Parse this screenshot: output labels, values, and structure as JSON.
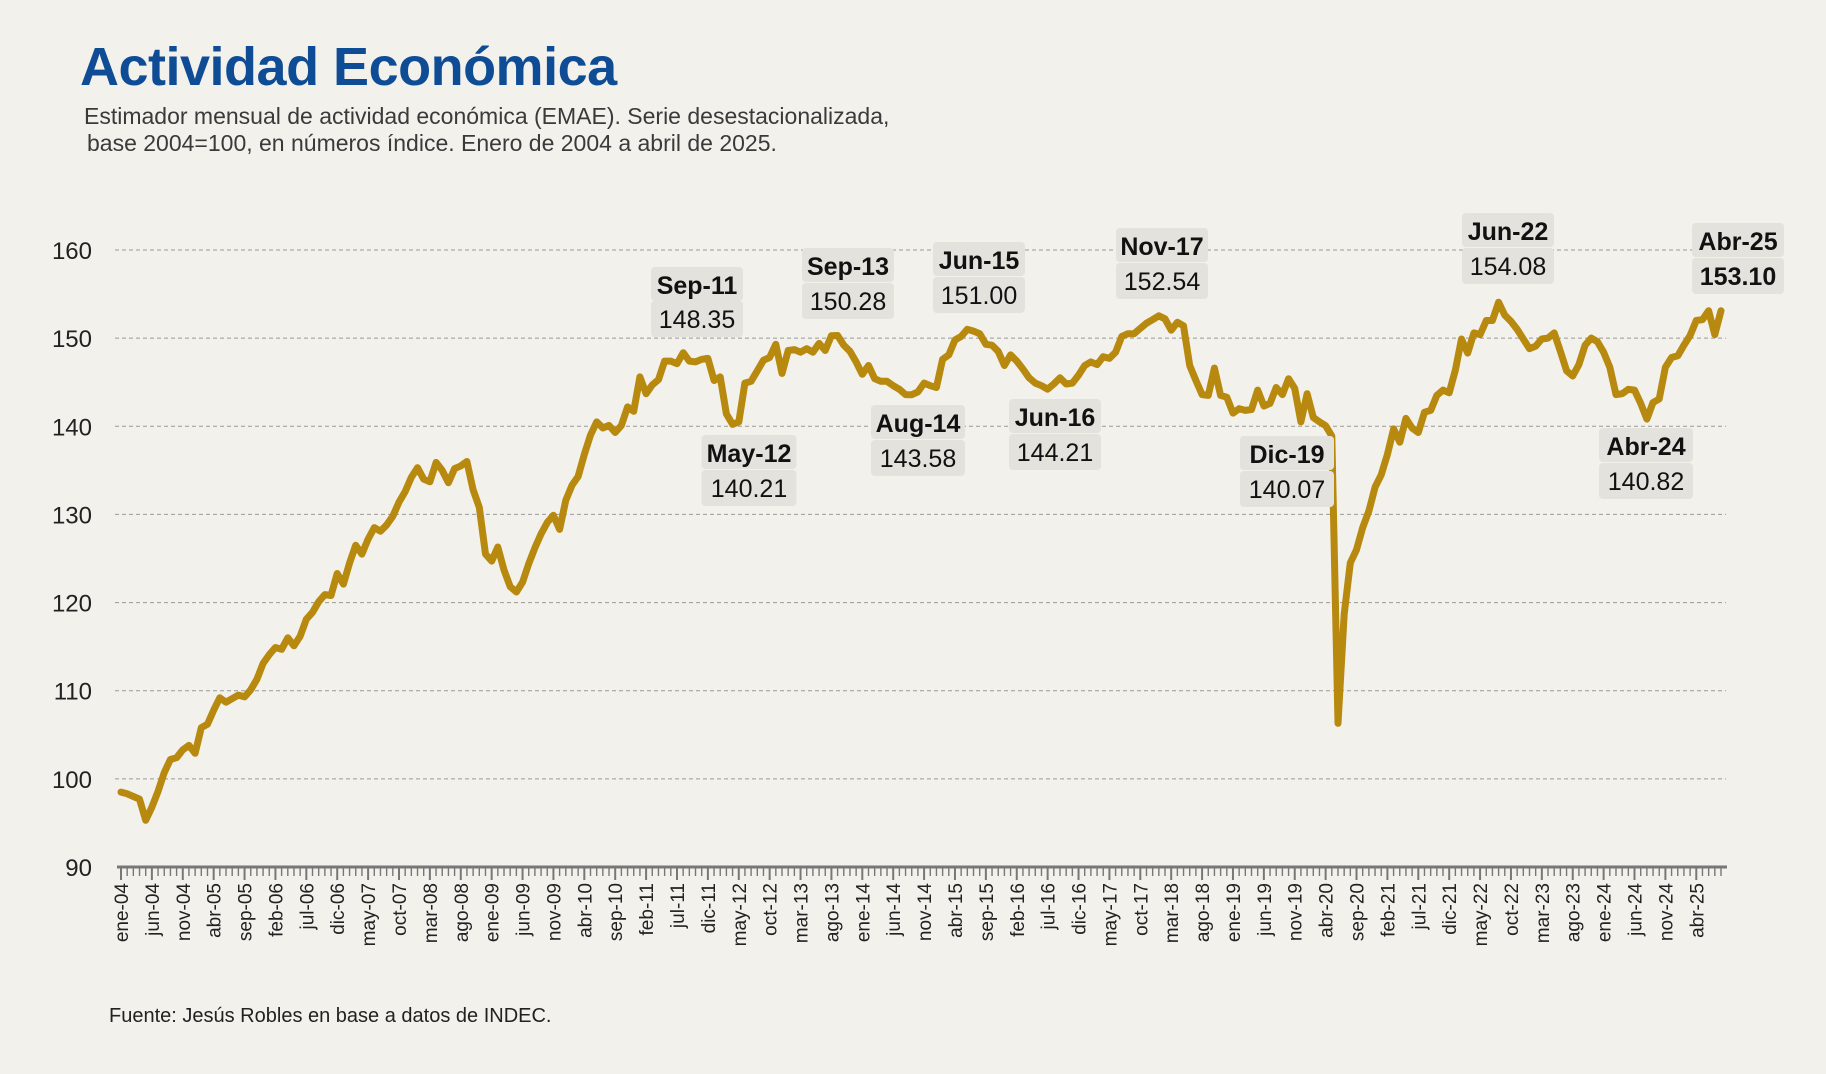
{
  "header": {
    "title": "Actividad Económica",
    "subtitle_line1": "Estimador mensual de actividad económica (EMAE). Serie desestacionalizada,",
    "subtitle_line2": "base 2004=100, en números índice. Enero de 2004 a abril de 2025."
  },
  "footer": {
    "source": "Fuente: Jesús Robles en base a datos de INDEC."
  },
  "colors": {
    "line": "#b8890f",
    "title": "#0f4c96",
    "background": "#f3f1ec",
    "grid": "#999999",
    "label_box": "#e4e2dd"
  },
  "chart_data": {
    "type": "line",
    "title": "Actividad Económica",
    "xlabel": "",
    "ylabel": "",
    "ylim": [
      90,
      160
    ],
    "yticks": [
      90,
      100,
      110,
      120,
      130,
      140,
      150,
      160
    ],
    "grid": "horizontal dashed",
    "start": "ene-04",
    "end": "abr-25",
    "x_tick_labels": [
      "ene-04",
      "jun-04",
      "nov-04",
      "abr-05",
      "sep-05",
      "feb-06",
      "jul-06",
      "dic-06",
      "may-07",
      "oct-07",
      "mar-08",
      "ago-08",
      "ene-09",
      "jun-09",
      "nov-09",
      "abr-10",
      "sep-10",
      "feb-11",
      "jul-11",
      "dic-11",
      "may-12",
      "oct-12",
      "mar-13",
      "ago-13",
      "ene-14",
      "jun-14",
      "nov-14",
      "abr-15",
      "sep-15",
      "feb-16",
      "jul-16",
      "dic-16",
      "may-17",
      "oct-17",
      "mar-18",
      "ago-18",
      "ene-19",
      "jun-19",
      "nov-19",
      "abr-20",
      "sep-20",
      "feb-21",
      "jul-21",
      "dic-21",
      "may-22",
      "oct-22",
      "mar-23",
      "ago-23",
      "ene-24",
      "jun-24",
      "nov-24",
      "abr-25"
    ],
    "series": [
      {
        "values": [
          98.5,
          98.3,
          98,
          97.7,
          95.3,
          96.8,
          98.6,
          100.7,
          102.2,
          102.4,
          103.3,
          103.8,
          102.9,
          105.8,
          106.2,
          107.8,
          109.2,
          108.7,
          109.1,
          109.5,
          109.3,
          110.1,
          111.3,
          113.1,
          114.1,
          114.9,
          114.7,
          116,
          115.1,
          116.2,
          118.1,
          118.9,
          120.1,
          120.9,
          120.8,
          123.3,
          122.1,
          124.5,
          126.5,
          125.5,
          127.2,
          128.5,
          128.1,
          128.8,
          129.8,
          131.4,
          132.6,
          134.2,
          135.3,
          134,
          133.7,
          135.9,
          135,
          133.6,
          135.2,
          135.5,
          136,
          132.8,
          130.8,
          125.5,
          124.7,
          126.3,
          123.7,
          121.8,
          121.2,
          122.3,
          124.4,
          126.2,
          127.8,
          129.1,
          129.9,
          128.3,
          131.6,
          133.3,
          134.3,
          136.8,
          139,
          140.5,
          139.8,
          140.1,
          139.3,
          140.1,
          142.2,
          141.7,
          145.6,
          143.7,
          144.7,
          145.3,
          147.4,
          147.4,
          147.1,
          148.35,
          147.4,
          147.3,
          147.6,
          147.7,
          145.2,
          145.6,
          141.4,
          140.21,
          140.5,
          144.9,
          145.1,
          146.3,
          147.5,
          147.8,
          149.3,
          146,
          148.6,
          148.7,
          148.4,
          148.8,
          148.4,
          149.4,
          148.6,
          150.28,
          150.3,
          149.2,
          148.5,
          147.3,
          145.9,
          146.9,
          145.4,
          145.1,
          145.1,
          144.6,
          144.2,
          143.6,
          143.58,
          143.9,
          144.9,
          144.6,
          144.4,
          147.6,
          148.1,
          149.8,
          150.2,
          151,
          150.8,
          150.5,
          149.3,
          149.2,
          148.5,
          146.9,
          148.1,
          147.4,
          146.5,
          145.5,
          144.9,
          144.6,
          144.21,
          144.8,
          145.5,
          144.8,
          144.9,
          145.8,
          146.9,
          147.3,
          147,
          147.9,
          147.7,
          148.4,
          150.2,
          150.5,
          150.5,
          151.1,
          151.7,
          152.1,
          152.54,
          152.2,
          150.9,
          151.8,
          151.4,
          146.9,
          145.2,
          143.6,
          143.5,
          146.6,
          143.5,
          143.3,
          141.5,
          142,
          141.8,
          141.9,
          144.1,
          142.3,
          142.6,
          144.4,
          143.6,
          145.4,
          144.3,
          140.5,
          143.7,
          141,
          140.5,
          140.07,
          138.9,
          106.3,
          118.7,
          124.5,
          126,
          128.5,
          130.4,
          133.1,
          134.5,
          136.8,
          139.7,
          138.2,
          140.9,
          139.8,
          139.3,
          141.6,
          141.8,
          143.5,
          144.1,
          143.8,
          146.4,
          149.9,
          148.3,
          150.6,
          150.4,
          152,
          152,
          154.08,
          152.6,
          151.9,
          151,
          149.9,
          148.8,
          149.1,
          149.9,
          150,
          150.6,
          148.5,
          146.3,
          145.7,
          147,
          149.2,
          150,
          149.6,
          148.4,
          146.7,
          143.6,
          143.7,
          144.2,
          144.1,
          142.6,
          140.82,
          142.7,
          143.1,
          146.7,
          147.8,
          148,
          149.2,
          150.3,
          152,
          152.1,
          153.1,
          150.4,
          153.1
        ]
      }
    ],
    "annotations": [
      {
        "month": "Sep-11",
        "value": "148.35"
      },
      {
        "month": "May-12",
        "value": "140.21"
      },
      {
        "month": "Sep-13",
        "value": "150.28"
      },
      {
        "month": "Aug-14",
        "value": "143.58"
      },
      {
        "month": "Jun-15",
        "value": "151.00"
      },
      {
        "month": "Jun-16",
        "value": "144.21"
      },
      {
        "month": "Nov-17",
        "value": "152.54"
      },
      {
        "month": "Dic-19",
        "value": "140.07"
      },
      {
        "month": "Jun-22",
        "value": "154.08"
      },
      {
        "month": "Abr-24",
        "value": "140.82"
      },
      {
        "month": "Abr-25",
        "value": "153.10"
      }
    ]
  }
}
